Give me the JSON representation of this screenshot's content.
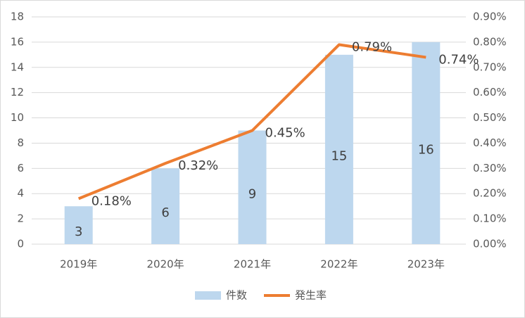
{
  "chart_data": {
    "type": "bar-line",
    "categories": [
      "2019年",
      "2020年",
      "2021年",
      "2022年",
      "2023年"
    ],
    "series": [
      {
        "name": "件数",
        "type": "bar",
        "color": "#bdd7ee",
        "values": [
          3,
          6,
          9,
          15,
          16
        ]
      },
      {
        "name": "発生率",
        "type": "line",
        "axis": "y2",
        "color": "#ed7d31",
        "values": [
          0.18,
          0.32,
          0.45,
          0.79,
          0.74
        ],
        "value_labels": [
          "0.18%",
          "0.32%",
          "0.45%",
          "0.79%",
          "0.74%"
        ]
      }
    ],
    "ylim": [
      0,
      18
    ],
    "yticks": [
      0,
      2,
      4,
      6,
      8,
      10,
      12,
      14,
      16,
      18
    ],
    "y2lim": [
      0,
      0.9
    ],
    "y2ticks": [
      {
        "value": 0,
        "label": "0.00%"
      },
      {
        "value": 0.1,
        "label": "0.10%"
      },
      {
        "value": 0.2,
        "label": "0.20%"
      },
      {
        "value": 0.3,
        "label": "0.30%"
      },
      {
        "value": 0.4,
        "label": "0.40%"
      },
      {
        "value": 0.5,
        "label": "0.50%"
      },
      {
        "value": 0.6,
        "label": "0.60%"
      },
      {
        "value": 0.7,
        "label": "0.70%"
      },
      {
        "value": 0.8,
        "label": "0.80%"
      },
      {
        "value": 0.9,
        "label": "0.90%"
      }
    ],
    "grid": true,
    "legend": "bottom"
  }
}
